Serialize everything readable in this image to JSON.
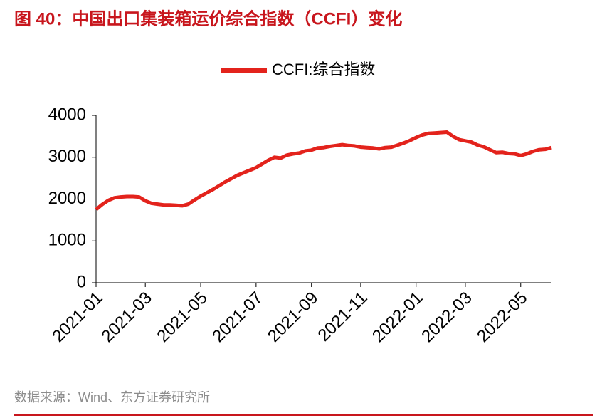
{
  "title": "图 40：中国出口集装箱运价综合指数（CCFI）变化",
  "source": "数据来源：Wind、东方证券研究所",
  "chart_data": {
    "type": "line",
    "categories": [
      "2021-01",
      null,
      null,
      null,
      null,
      null,
      null,
      null,
      "2021-03",
      null,
      null,
      null,
      null,
      null,
      null,
      null,
      null,
      "2021-05",
      null,
      null,
      null,
      null,
      null,
      null,
      null,
      null,
      "2021-07",
      null,
      null,
      null,
      null,
      null,
      null,
      null,
      null,
      "2021-09",
      null,
      null,
      null,
      null,
      null,
      null,
      null,
      "2021-11",
      null,
      null,
      null,
      null,
      null,
      null,
      null,
      null,
      "2022-01",
      null,
      null,
      null,
      null,
      null,
      null,
      null,
      "2022-03",
      null,
      null,
      null,
      null,
      null,
      null,
      null,
      null,
      "2022-05",
      null,
      null,
      null,
      null,
      null
    ],
    "series": [
      {
        "name": "CCFI:综合指数",
        "color": "#e3231c",
        "values": [
          1750,
          1870,
          1970,
          2030,
          2050,
          2060,
          2060,
          2050,
          1960,
          1900,
          1880,
          1860,
          1860,
          1850,
          1840,
          1880,
          1980,
          2070,
          2150,
          2230,
          2320,
          2410,
          2490,
          2570,
          2630,
          2690,
          2750,
          2840,
          2930,
          3000,
          2980,
          3050,
          3080,
          3100,
          3150,
          3170,
          3220,
          3230,
          3260,
          3280,
          3300,
          3280,
          3270,
          3240,
          3230,
          3220,
          3200,
          3230,
          3240,
          3290,
          3340,
          3400,
          3470,
          3530,
          3570,
          3580,
          3590,
          3600,
          3500,
          3420,
          3390,
          3360,
          3290,
          3250,
          3180,
          3110,
          3120,
          3090,
          3080,
          3040,
          3080,
          3140,
          3180,
          3190,
          3230
        ]
      }
    ],
    "ylim": [
      0,
      4000
    ],
    "yticks": [
      0,
      1000,
      2000,
      3000,
      4000
    ],
    "grid": false,
    "legend": "top"
  }
}
